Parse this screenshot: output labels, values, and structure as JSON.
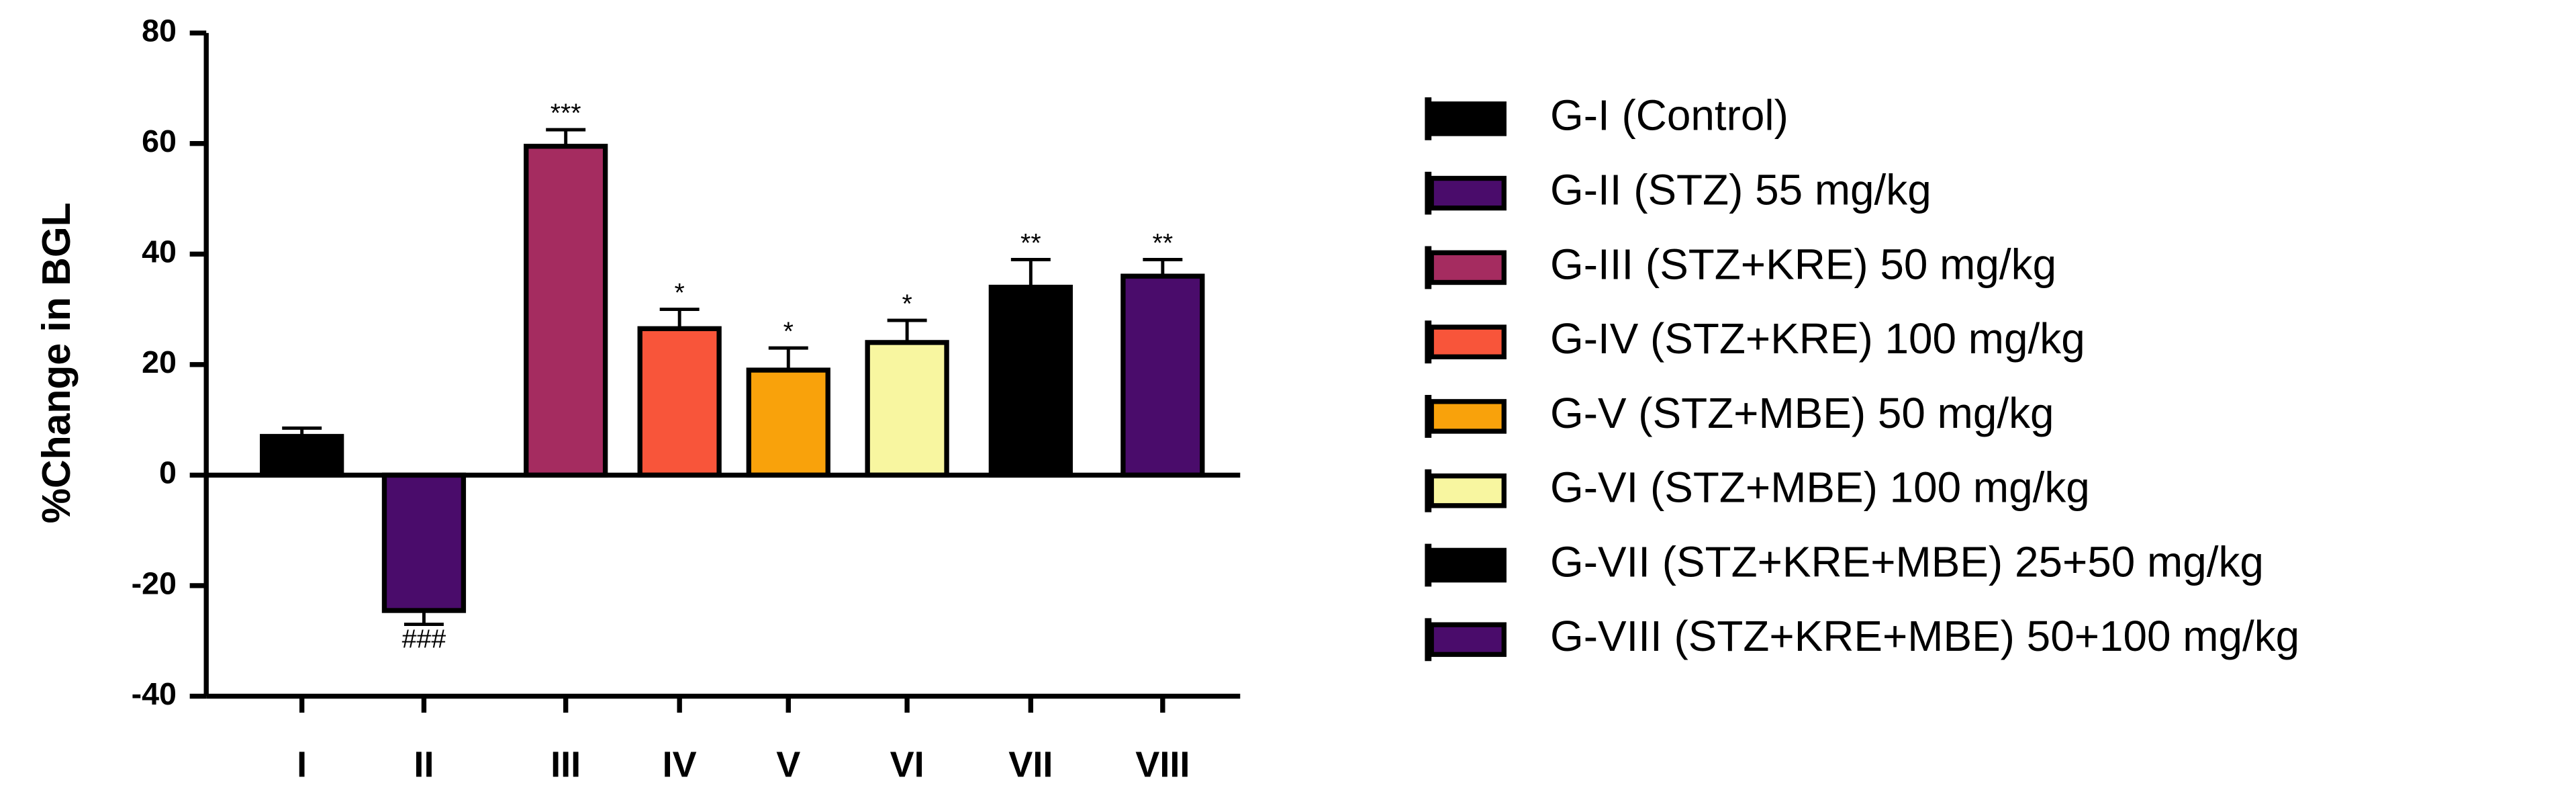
{
  "chart_data": {
    "type": "bar",
    "y_label": "%Change in BGL",
    "categories": [
      "I",
      "II",
      "III",
      "IV",
      "V",
      "VI",
      "VII",
      "VIII"
    ],
    "values": [
      7,
      -24.5,
      59.5,
      26.5,
      19,
      24,
      34,
      36
    ],
    "errors": [
      1.5,
      2.5,
      3,
      3.5,
      4,
      4,
      5,
      3
    ],
    "colors": [
      "#000000",
      "#4a0c6b",
      "#a52c60",
      "#f8553a",
      "#f9a20b",
      "#f8f6a0",
      "#000000",
      "#4a0c6b"
    ],
    "significance": [
      null,
      "###",
      "***",
      "*",
      "*",
      "*",
      "**",
      "**"
    ],
    "legend": [
      "G-I (Control)",
      "G-II (STZ) 55 mg/kg",
      "G-III (STZ+KRE) 50 mg/kg",
      "G-IV (STZ+KRE)  100 mg/kg",
      "G-V (STZ+MBE) 50 mg/kg",
      "G-VI (STZ+MBE) 100 mg/kg",
      "G-VII (STZ+KRE+MBE) 25+50 mg/kg",
      "G-VIII (STZ+KRE+MBE) 50+100 mg/kg"
    ],
    "ylim": [
      -40,
      80
    ],
    "yticks": [
      -40,
      -20,
      0,
      20,
      40,
      60,
      80
    ]
  }
}
